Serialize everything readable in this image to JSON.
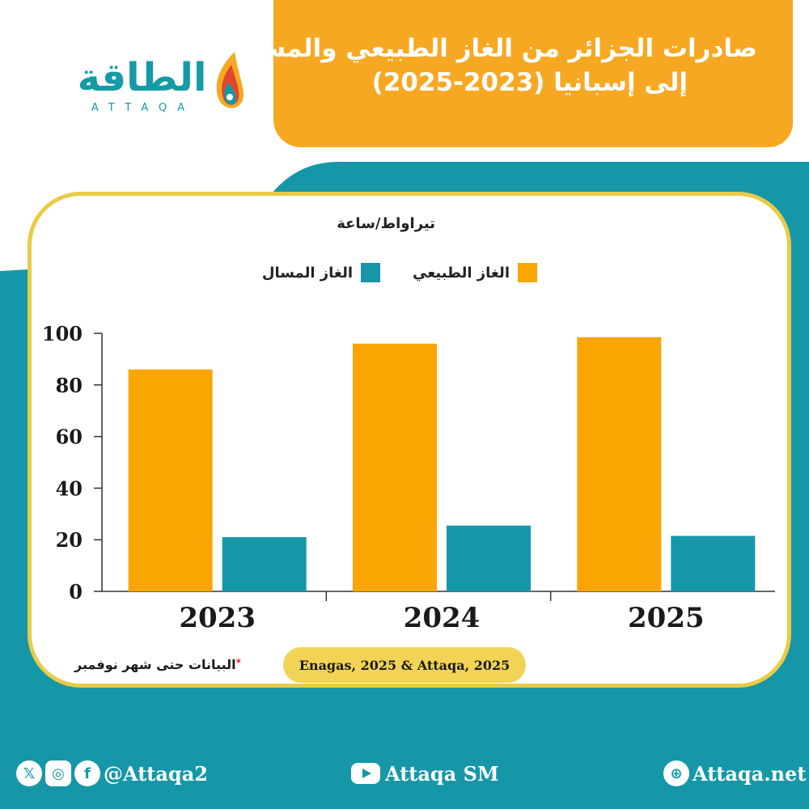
{
  "header": {
    "title_line1": "صادرات الجزائر من الغاز الطبيعي والمسال",
    "title_line2": "إلى إسبانيا (2023-2025)"
  },
  "logo": {
    "arabic": "الطاقة",
    "latin": "ATTAQA"
  },
  "chart_data": {
    "type": "bar",
    "unit_label": "تيراواط/ساعة",
    "categories": [
      "2023",
      "2024",
      "2025"
    ],
    "series": [
      {
        "name": "الغاز الطبيعي",
        "color": "#f9a602",
        "values": [
          86,
          96,
          98.5
        ]
      },
      {
        "name": "الغاز المسال",
        "color": "#1697a8",
        "values": [
          21,
          25.5,
          21.5
        ]
      }
    ],
    "y_ticks": [
      "0",
      "20",
      "40",
      "60",
      "80",
      "100"
    ],
    "ylim": [
      0,
      100
    ],
    "legend_position": "top"
  },
  "footnote": {
    "text": "البيانات حتى شهر نوفمبر",
    "marker": "*"
  },
  "source": "Enagas, 2025 & Attaqa, 2025",
  "footer": {
    "social_handle": "@Attaqa2",
    "youtube": "Attaqa SM",
    "website": "Attaqa.net",
    "icon_x": "x-icon",
    "icon_instagram": "instagram-icon",
    "icon_facebook": "facebook-icon",
    "icon_youtube": "youtube-icon",
    "icon_globe": "globe-icon"
  }
}
